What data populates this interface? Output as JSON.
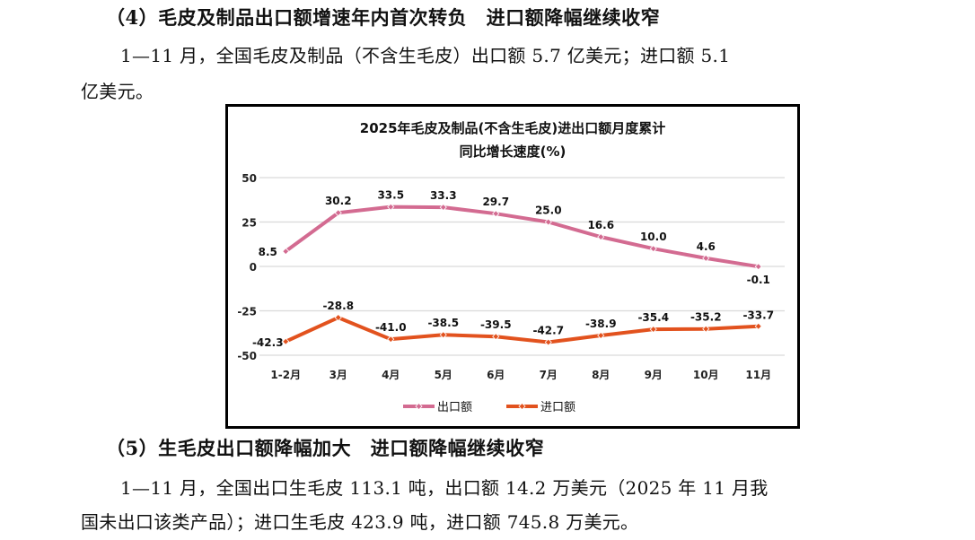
{
  "section4": {
    "heading": "（4）毛皮及制品出口额增速年内首次转负　进口额降幅继续收窄",
    "para_line1": "1—11 月，全国毛皮及制品（不含生毛皮）出口额 5.7 亿美元；进口额 5.1",
    "para_line2": "亿美元。"
  },
  "section5": {
    "heading": "（5）生毛皮出口额降幅加大　进口额降幅继续收窄",
    "para_line1": "1—11 月，全国出口生毛皮 113.1 吨，出口额 14.2 万美元（2025 年 11 月我",
    "para_line2": "国未出口该类产品）；进口生毛皮 423.9 吨，进口额 745.8 万美元。"
  },
  "chart_data": {
    "type": "line",
    "title_line1": "2025年毛皮及制品(不含生毛皮)进出口额月度累计",
    "title_line2": "同比增长速度(%)",
    "categories": [
      "1-2月",
      "3月",
      "4月",
      "5月",
      "6月",
      "7月",
      "8月",
      "9月",
      "10月",
      "11月"
    ],
    "ylim": [
      -50,
      50
    ],
    "yticks": [
      50,
      25,
      0,
      -25,
      -50
    ],
    "ytick_labels": [
      "50",
      "25",
      "0",
      "-25",
      "-50"
    ],
    "grid": true,
    "legend_position": "bottom",
    "series": [
      {
        "name": "出口额",
        "color": "#d36b91",
        "values": [
          8.5,
          30.2,
          33.5,
          33.3,
          29.7,
          25.0,
          16.6,
          10.0,
          4.6,
          -0.1
        ],
        "labels": [
          "8.5",
          "30.2",
          "33.5",
          "33.3",
          "29.7",
          "25.0",
          "16.6",
          "10.0",
          "4.6",
          "-0.1"
        ]
      },
      {
        "name": "进口额",
        "color": "#e2521e",
        "values": [
          -42.3,
          -28.8,
          -41.0,
          -38.5,
          -39.5,
          -42.7,
          -38.9,
          -35.4,
          -35.2,
          -33.7
        ],
        "labels": [
          "-42.3",
          "-28.8",
          "-41.0",
          "-38.5",
          "-39.5",
          "-42.7",
          "-38.9",
          "-35.4",
          "-35.2",
          "-33.7"
        ]
      }
    ]
  }
}
